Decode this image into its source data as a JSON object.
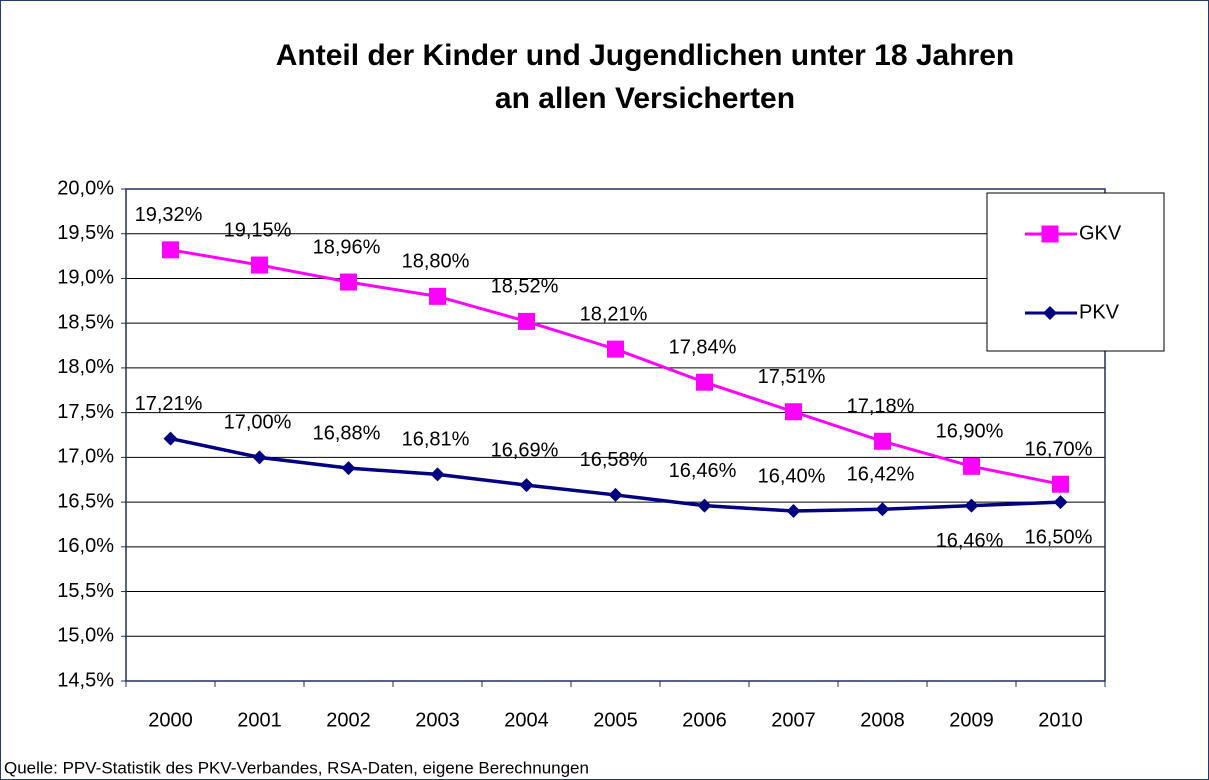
{
  "chart_data": {
    "type": "line",
    "title": [
      "Anteil der Kinder und Jugendlichen unter 18 Jahren",
      "an allen Versicherten"
    ],
    "source": "Quelle: PPV-Statistik des PKV-Verbandes, RSA-Daten, eigene Berechnungen",
    "categories": [
      "2000",
      "2001",
      "2002",
      "2003",
      "2004",
      "2005",
      "2006",
      "2007",
      "2008",
      "2009",
      "2010"
    ],
    "series": [
      {
        "name": "GKV",
        "color": "#ff00ff",
        "marker": "square",
        "values": [
          19.32,
          19.15,
          18.96,
          18.8,
          18.52,
          18.21,
          17.84,
          17.51,
          17.18,
          16.9,
          16.7
        ],
        "value_labels": [
          "19,32%",
          "19,15%",
          "18,96%",
          "18,80%",
          "18,52%",
          "18,21%",
          "17,84%",
          "17,51%",
          "17,18%",
          "16,90%",
          "16,70%"
        ]
      },
      {
        "name": "PKV",
        "color": "#000080",
        "marker": "diamond",
        "values": [
          17.21,
          17.0,
          16.88,
          16.81,
          16.69,
          16.58,
          16.46,
          16.4,
          16.42,
          16.46,
          16.5
        ],
        "value_labels": [
          "17,21%",
          "17,00%",
          "16,88%",
          "16,81%",
          "16,69%",
          "16,58%",
          "16,46%",
          "16,40%",
          "16,42%",
          "16,46%",
          "16,50%"
        ]
      }
    ],
    "ylim": [
      14.5,
      20.0
    ],
    "yticks": [
      {
        "value": 14.5,
        "label": "14,5%"
      },
      {
        "value": 15.0,
        "label": "15,0%"
      },
      {
        "value": 15.5,
        "label": "15,5%"
      },
      {
        "value": 16.0,
        "label": "16,0%"
      },
      {
        "value": 16.5,
        "label": "16,5%"
      },
      {
        "value": 17.0,
        "label": "17,0%"
      },
      {
        "value": 17.5,
        "label": "17,5%"
      },
      {
        "value": 18.0,
        "label": "18,0%"
      },
      {
        "value": 18.5,
        "label": "18,5%"
      },
      {
        "value": 19.0,
        "label": "19,0%"
      },
      {
        "value": 19.5,
        "label": "19,5%"
      },
      {
        "value": 20.0,
        "label": "20,0%"
      }
    ],
    "grid": true,
    "legend": "upper right"
  }
}
